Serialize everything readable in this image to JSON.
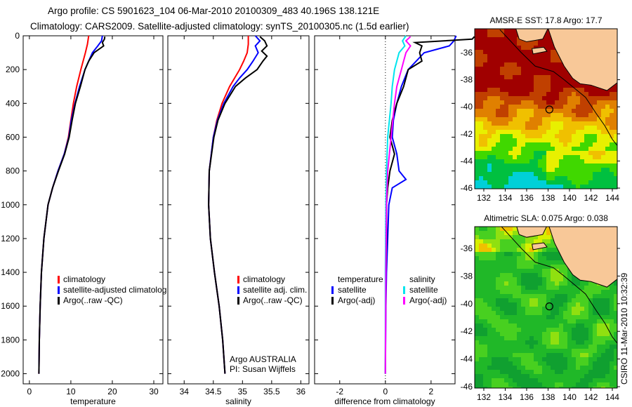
{
  "title": {
    "line1": "Argo profile: CS 5901623_104 06-Mar-2010 20100309_483 40.196S 138.121E",
    "line2": "Climatology: CARS2009. Satellite-adjusted climatology: synTS_20100305.nc (1.5d earlier)"
  },
  "footer_stamp": "CSIRO 11-Mar-2010 10:32:39",
  "colors": {
    "climatology": "#ff0000",
    "satellite": "#0000ff",
    "argo": "#000000",
    "sal_satellite": "#00e5ee",
    "sal_argo": "#ff00ff"
  },
  "chart_data": [
    {
      "type": "line",
      "xlabel": "temperature",
      "xlim": [
        -1.5,
        32.2
      ],
      "ylim": [
        0,
        2060
      ],
      "xticks": [
        0,
        10,
        20,
        30
      ],
      "yticks": [
        0,
        200,
        400,
        600,
        800,
        1000,
        1200,
        1400,
        1600,
        1800,
        2000
      ],
      "legend": [
        "climatology",
        "satellite-adjusted climatolog",
        "Argo(..raw -QC)"
      ],
      "series": [
        {
          "name": "climatology",
          "color": "#ff0000",
          "depth": [
            0,
            50,
            100,
            200,
            300,
            400,
            500,
            600,
            700,
            800,
            900,
            1000,
            1200,
            1400,
            1600,
            1800,
            2000
          ],
          "values": [
            14.3,
            14,
            13.5,
            12.4,
            11.4,
            10.6,
            10,
            9.4,
            8.4,
            6.9,
            5.6,
            4.5,
            3.5,
            2.9,
            2.6,
            2.4,
            2.3
          ]
        },
        {
          "name": "satellite-adjusted climatology",
          "color": "#0000ff",
          "depth": [
            0,
            30,
            60,
            100,
            200,
            300,
            400,
            500,
            600,
            700,
            800,
            900,
            1000,
            1200,
            1400,
            1600,
            1800,
            2000
          ],
          "values": [
            17.6,
            17.4,
            16.5,
            15.2,
            13.4,
            12.1,
            11.0,
            10.1,
            9.5,
            8.4,
            6.9,
            5.6,
            4.5,
            3.5,
            2.9,
            2.6,
            2.4,
            2.3
          ]
        },
        {
          "name": "Argo(..raw -QC)",
          "color": "#000000",
          "depth": [
            5,
            20,
            40,
            60,
            100,
            150,
            200,
            300,
            400,
            500,
            600,
            700,
            800,
            900,
            1000,
            1200,
            1400,
            1600,
            1800,
            2000
          ],
          "values": [
            18.2,
            18.1,
            17.6,
            17.9,
            15.6,
            14.3,
            13.4,
            12.3,
            11.1,
            10.3,
            9.6,
            8.5,
            7.0,
            5.6,
            4.5,
            3.5,
            2.9,
            2.6,
            2.4,
            2.3
          ]
        }
      ]
    },
    {
      "type": "line",
      "xlabel": "salinity",
      "xlim": [
        33.72,
        36.14
      ],
      "ylim": [
        0,
        2060
      ],
      "xticks": [
        34,
        34.5,
        35,
        35.5,
        36
      ],
      "legend": [
        "climatology",
        "satellite adj. clim.",
        "Argo(..raw -QC)"
      ],
      "annotation": [
        "Argo AUSTRALIA",
        "PI: Susan Wijffels"
      ],
      "series": [
        {
          "name": "climatology",
          "color": "#ff0000",
          "depth": [
            0,
            50,
            100,
            150,
            200,
            300,
            400,
            500,
            600,
            800,
            1000,
            1200,
            1400,
            1600,
            1800,
            2000
          ],
          "values": [
            35.1,
            35.1,
            35.08,
            35.02,
            34.95,
            34.78,
            34.65,
            34.56,
            34.5,
            34.43,
            34.42,
            34.45,
            34.52,
            34.6,
            34.66,
            34.7
          ]
        },
        {
          "name": "satellite adj. clim.",
          "color": "#0000ff",
          "depth": [
            0,
            30,
            60,
            100,
            150,
            200,
            250,
            300,
            400,
            500,
            600,
            800,
            1000,
            1200,
            1400,
            1600,
            1800,
            2000
          ],
          "values": [
            35.22,
            35.3,
            35.22,
            35.27,
            35.18,
            35.08,
            34.95,
            34.84,
            34.68,
            34.57,
            34.5,
            34.43,
            34.42,
            34.45,
            34.52,
            34.6,
            34.66,
            34.7
          ]
        },
        {
          "name": "Argo(..raw -QC)",
          "color": "#000000",
          "depth": [
            5,
            30,
            60,
            90,
            120,
            150,
            200,
            250,
            300,
            400,
            500,
            600,
            800,
            1000,
            1200,
            1400,
            1600,
            1800,
            2000
          ],
          "values": [
            35.3,
            35.38,
            35.42,
            35.33,
            35.42,
            35.35,
            35.25,
            35.05,
            34.88,
            34.7,
            34.58,
            34.51,
            34.43,
            34.42,
            34.45,
            34.52,
            34.6,
            34.66,
            34.7
          ]
        }
      ]
    },
    {
      "type": "line",
      "xlabel": "difference from climatology",
      "xlim": [
        -3.1,
        3.05
      ],
      "ylim": [
        0,
        2060
      ],
      "xticks": [
        -2,
        0,
        2
      ],
      "legend": {
        "temperature_header": "temperature",
        "temperature": [
          "satellite",
          "Argo(-adj)"
        ],
        "salinity_header": "salinity",
        "salinity": [
          "satellite",
          "Argo(-adj)"
        ]
      },
      "series": [
        {
          "name": "temperature satellite",
          "color": "#0000ff",
          "depth": [
            0,
            30,
            60,
            100,
            200,
            300,
            400,
            500,
            600,
            700,
            800,
            850,
            900,
            1000,
            1200,
            1400,
            1600,
            2000
          ],
          "values": [
            3.1,
            3.0,
            2.8,
            1.7,
            1.0,
            0.7,
            0.5,
            0.35,
            0.3,
            0.5,
            0.6,
            0.9,
            0.3,
            0.15,
            0.1,
            0.05,
            0.02,
            0.0
          ]
        },
        {
          "name": "temperature Argo(-adj)",
          "color": "#000000",
          "depth": [
            5,
            20,
            40,
            60,
            100,
            150,
            200,
            300,
            400,
            500,
            600,
            700,
            800,
            900,
            1000,
            1200,
            1400,
            1600,
            2000
          ],
          "values": [
            3.9,
            3.8,
            1.3,
            1.6,
            1.5,
            1.6,
            1.0,
            0.8,
            0.5,
            0.3,
            0.2,
            0.4,
            0.2,
            0.1,
            0.05,
            0.05,
            0.02,
            0.01,
            0.0
          ]
        },
        {
          "name": "salinity satellite",
          "color": "#00e5ee",
          "depth": [
            0,
            30,
            60,
            100,
            200,
            300,
            400,
            600,
            800,
            1000,
            1400,
            2000
          ],
          "values": [
            0.9,
            0.75,
            0.85,
            0.6,
            0.4,
            0.3,
            0.25,
            0.1,
            0.05,
            0.02,
            0.0,
            0.0
          ]
        },
        {
          "name": "salinity Argo(-adj)",
          "color": "#ff00ff",
          "depth": [
            5,
            30,
            60,
            100,
            150,
            200,
            300,
            400,
            600,
            800,
            1000,
            1400,
            2000
          ],
          "values": [
            1.1,
            0.9,
            1.1,
            0.9,
            0.8,
            0.7,
            0.5,
            0.4,
            0.25,
            0.1,
            0.05,
            0.02,
            0.0
          ]
        }
      ]
    },
    {
      "type": "heatmap",
      "title": "AMSR-E SST: 17.8 Argo: 17.7",
      "xlim": [
        131.15,
        144.46
      ],
      "ylim": [
        -46.05,
        -34.24
      ],
      "xticks": [
        132,
        134,
        136,
        138,
        140,
        142,
        144
      ],
      "yticks": [
        -36,
        -38,
        -40,
        -42,
        -44,
        -46
      ],
      "float_position": [
        138.121,
        -40.196
      ]
    },
    {
      "type": "heatmap",
      "title": "Altimetric SLA: 0.075 Argo: 0.038",
      "xlim": [
        131.15,
        144.46
      ],
      "ylim": [
        -46.1,
        -34.43
      ],
      "xticks": [
        132,
        134,
        136,
        138,
        140,
        142,
        144
      ],
      "yticks": [
        -36,
        -38,
        -40,
        -42,
        -44,
        -46
      ],
      "float_position": [
        138.121,
        -40.196
      ]
    }
  ]
}
